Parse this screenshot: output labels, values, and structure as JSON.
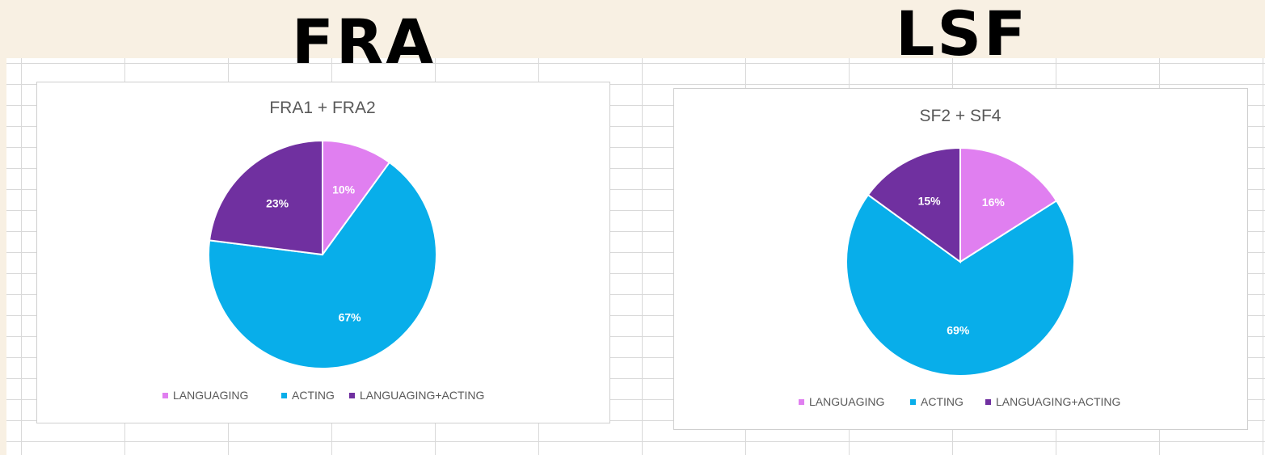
{
  "headings": {
    "left": "FRA",
    "right": "LSF"
  },
  "chart_data": [
    {
      "type": "pie",
      "title": "FRA1 + FRA2",
      "categories": [
        "LANGUAGING",
        "ACTING",
        "LANGUAGING+ACTING"
      ],
      "values": [
        10,
        67,
        23
      ],
      "labels": [
        "10%",
        "67%",
        "23%"
      ],
      "colors": [
        "#e07ff0",
        "#08aeea",
        "#7030a0"
      ],
      "legend_position": "bottom",
      "grid": false
    },
    {
      "type": "pie",
      "title": "SF2 + SF4",
      "categories": [
        "LANGUAGING",
        "ACTING",
        "LANGUAGING+ACTING"
      ],
      "values": [
        16,
        69,
        15
      ],
      "labels": [
        "16%",
        "69%",
        "15%"
      ],
      "colors": [
        "#e07ff0",
        "#08aeea",
        "#7030a0"
      ],
      "legend_position": "bottom",
      "grid": false
    }
  ]
}
